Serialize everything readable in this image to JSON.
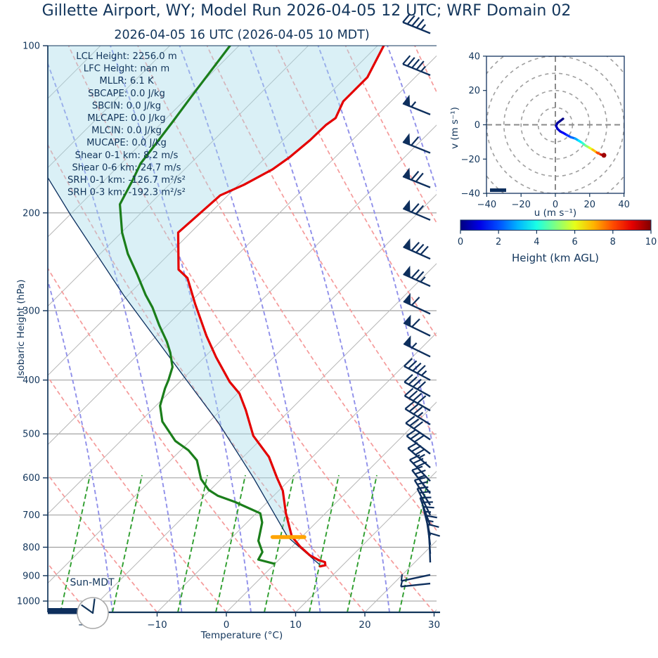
{
  "title": "Gillette  Airport, WY; Model Run 2026-04-05 12 UTC; WRF Domain 02",
  "subtitle": "2026-04-05 16 UTC  (2026-04-05 10 MDT)",
  "colors": {
    "temperature_red": "#e40000",
    "dewpoint_green": "#1b7e1b",
    "parcel_navy": "#0b2e5e",
    "cin_fill": "#a8dce9",
    "lcl_orange": "#ffa400",
    "barb_navy": "#0e2f5d",
    "text_navy": "#12355b",
    "isotherm_gray": "#b8b8b8",
    "pressure_line_gray": "#9a9a9a",
    "dry_adiabat_red": "#f59a9a",
    "moist_adiabat_blue": "#9090ea",
    "mixing_ratio_green": "#2f9e2f"
  },
  "chart_data": {
    "type": "skewt_log_p_sounding",
    "skewt": {
      "xlabel": "Temperature (°C)",
      "ylabel": "Isobaric Height (hPa)",
      "p_axis_range_hpa": [
        100,
        1050
      ],
      "t_axis_range_c": [
        -26,
        30
      ],
      "pressure_ticks": [
        100,
        200,
        300,
        400,
        500,
        600,
        700,
        800,
        900,
        1000
      ],
      "temp_tick_values": [
        -20,
        -10,
        0,
        10,
        20,
        30
      ],
      "temp_tick_labels": [
        "−20",
        "−10",
        "0",
        "10",
        "20",
        "30"
      ],
      "temperature_profile": [
        [
          100,
          -59.1
        ],
        [
          114,
          -56.9
        ],
        [
          120,
          -56.9
        ],
        [
          126,
          -56.9
        ],
        [
          135,
          -55.6
        ],
        [
          139,
          -56.0
        ],
        [
          148,
          -56.1
        ],
        [
          159,
          -56.6
        ],
        [
          167,
          -57.3
        ],
        [
          178,
          -59.2
        ],
        [
          186,
          -61.1
        ],
        [
          217,
          -61.8
        ],
        [
          253,
          -56.4
        ],
        [
          262,
          -53.9
        ],
        [
          292,
          -49.0
        ],
        [
          333,
          -42.8
        ],
        [
          364,
          -38.3
        ],
        [
          403,
          -32.8
        ],
        [
          423,
          -29.7
        ],
        [
          453,
          -26.4
        ],
        [
          504,
          -21.6
        ],
        [
          550,
          -16.3
        ],
        [
          600,
          -12.1
        ],
        [
          633,
          -9.4
        ],
        [
          695,
          -5.7
        ],
        [
          765,
          -1.5
        ],
        [
          797,
          1.1
        ],
        [
          827,
          3.8
        ],
        [
          844,
          5.8
        ],
        [
          851,
          7.0
        ],
        [
          862,
          7.5
        ],
        [
          866,
          6.9
        ]
      ],
      "dewpoint_profile": [
        [
          100,
          -81.3
        ],
        [
          114,
          -80.2
        ],
        [
          124,
          -79.5
        ],
        [
          137,
          -78.6
        ],
        [
          151,
          -77.8
        ],
        [
          163,
          -77.2
        ],
        [
          175,
          -75.9
        ],
        [
          193,
          -74.3
        ],
        [
          217,
          -69.9
        ],
        [
          237,
          -66.0
        ],
        [
          258,
          -61.7
        ],
        [
          281,
          -57.5
        ],
        [
          296,
          -54.7
        ],
        [
          319,
          -51.1
        ],
        [
          341,
          -47.7
        ],
        [
          357,
          -45.6
        ],
        [
          379,
          -43.2
        ],
        [
          400,
          -41.9
        ],
        [
          414,
          -41.2
        ],
        [
          445,
          -39.4
        ],
        [
          475,
          -36.8
        ],
        [
          515,
          -32.1
        ],
        [
          535,
          -28.9
        ],
        [
          558,
          -26.2
        ],
        [
          603,
          -22.9
        ],
        [
          631,
          -20.2
        ],
        [
          646,
          -18.1
        ],
        [
          663,
          -14.7
        ],
        [
          695,
          -9.4
        ],
        [
          722,
          -7.8
        ],
        [
          779,
          -5.7
        ],
        [
          816,
          -3.5
        ],
        [
          842,
          -3.0
        ],
        [
          856,
          -0.2
        ]
      ],
      "parcel_profile": [
        [
          173,
          -88.5
        ],
        [
          202,
          -79.8
        ],
        [
          281,
          -60.7
        ],
        [
          400,
          -39.3
        ],
        [
          476,
          -28.7
        ],
        [
          600,
          -15.5
        ],
        [
          767,
          -2.0
        ],
        [
          860,
          6.6
        ]
      ],
      "cin_shading": true,
      "lcl_marker": {
        "p_hpa": 767,
        "t_c": -1.9,
        "half_width_c": 2.3
      },
      "wind_barbs": [
        [
          95,
          45,
          22
        ],
        [
          113,
          45,
          22
        ],
        [
          133,
          55,
          22
        ],
        [
          156,
          60,
          22
        ],
        [
          180,
          70,
          22
        ],
        [
          206,
          70,
          23
        ],
        [
          242,
          80,
          24
        ],
        [
          271,
          75,
          24
        ],
        [
          304,
          60,
          25
        ],
        [
          333,
          60,
          26
        ],
        [
          363,
          55,
          26
        ],
        [
          400,
          45,
          28
        ],
        [
          428,
          40,
          29
        ],
        [
          454,
          40,
          30
        ],
        [
          481,
          35,
          32
        ],
        [
          512,
          30,
          34
        ],
        [
          543,
          30,
          37
        ],
        [
          575,
          35,
          41
        ],
        [
          608,
          30,
          46
        ],
        [
          640,
          25,
          52
        ],
        [
          672,
          25,
          58
        ],
        [
          700,
          20,
          64
        ],
        [
          731,
          20,
          70
        ],
        [
          762,
          15,
          76
        ],
        [
          792,
          15,
          82
        ],
        [
          822,
          10,
          86
        ],
        [
          852,
          10,
          88
        ],
        [
          897,
          5,
          -12
        ],
        [
          930,
          5,
          -6
        ]
      ],
      "stats_lines": [
        "LCL Height: 2256.0 m",
        "LFC Height: nan m",
        "MLLR: 6.1 K",
        "SBCAPE: 0.0 J/kg",
        "SBCIN: 0.0 J/kg",
        "MLCAPE: 0.0 J/kg",
        "MLCIN: 0.0 J/kg",
        "MUCAPE: 0.0 J/kg",
        "Shear 0-1 km: 8.2 m/s",
        "Shear 0-6 km: 24.7 m/s",
        "SRH 0-1 km: -126.7 m²/s²",
        "SRH 0-3 km: -192.3 m²/s²"
      ],
      "sun_label": "Sun-MDT",
      "clock_time": "10:00"
    },
    "hodograph": {
      "xlabel": "u (m s⁻¹)",
      "ylabel": "v (m s⁻¹)",
      "axis_range": [
        -40,
        40
      ],
      "tick_values": [
        -40,
        -20,
        0,
        20,
        40
      ],
      "tick_labels": [
        "−40",
        "−20",
        "0",
        "20",
        "40"
      ],
      "ring_radii_ms": [
        10,
        20,
        30,
        40,
        50
      ],
      "trace_uvh": [
        [
          4.5,
          3.5,
          0.0
        ],
        [
          2.9,
          2.3,
          0.1
        ],
        [
          1.2,
          1.0,
          0.25
        ],
        [
          0.4,
          -0.6,
          0.4
        ],
        [
          1.2,
          -2.3,
          0.6
        ],
        [
          2.9,
          -3.9,
          0.85
        ],
        [
          4.5,
          -4.7,
          1.1
        ],
        [
          6.6,
          -5.9,
          1.5
        ],
        [
          9.0,
          -7.2,
          2.0
        ],
        [
          11.5,
          -8.0,
          2.6
        ],
        [
          13.5,
          -9.2,
          3.2
        ],
        [
          15.6,
          -10.5,
          3.9
        ],
        [
          17.6,
          -12.1,
          4.7
        ],
        [
          19.7,
          -13.3,
          5.5
        ],
        [
          21.7,
          -14.5,
          6.4
        ],
        [
          24.2,
          -16.2,
          7.4
        ],
        [
          26.6,
          -17.4,
          8.6
        ],
        [
          28.3,
          -17.8,
          10.0
        ]
      ]
    },
    "colorbar": {
      "label": "Height (km AGL)",
      "min": 0,
      "max": 10,
      "tick_values": [
        0,
        2,
        4,
        6,
        8,
        10
      ],
      "colormap": "jet"
    }
  }
}
